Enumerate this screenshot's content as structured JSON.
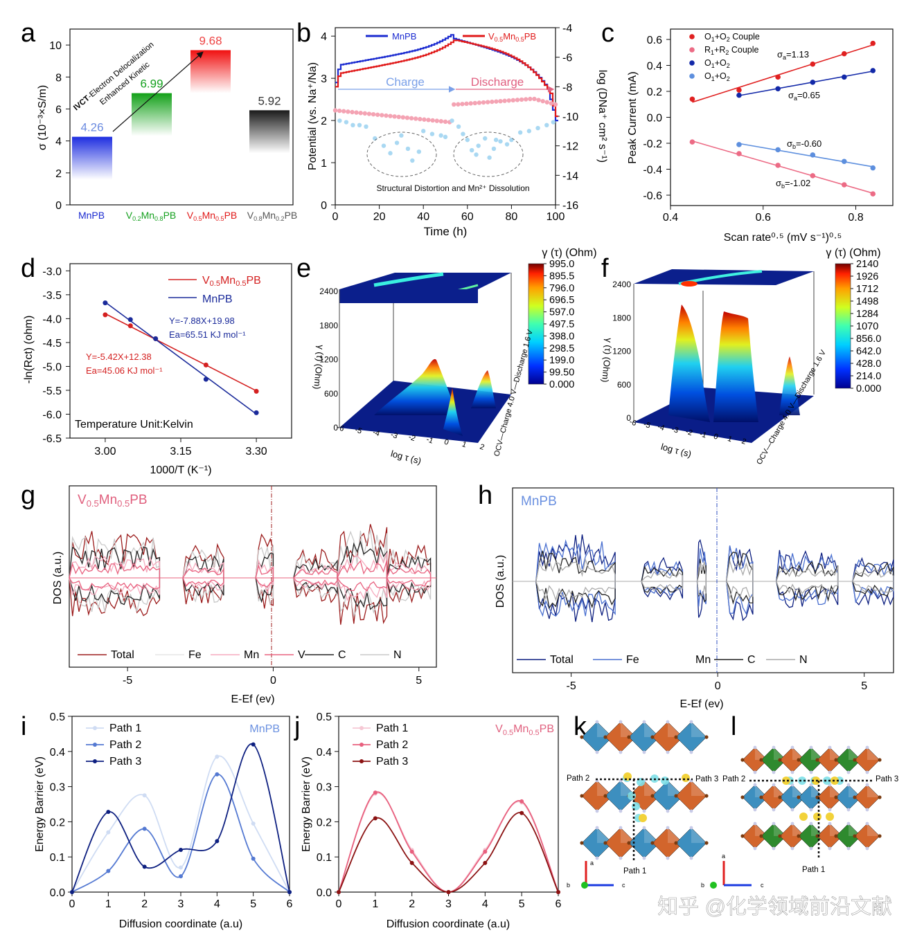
{
  "figure": {
    "panel_letters": [
      "a",
      "b",
      "c",
      "d",
      "e",
      "f",
      "g",
      "h",
      "i",
      "j",
      "k",
      "l"
    ],
    "watermark": "知乎 @化学领域前沿文献"
  },
  "chart_data": [
    {
      "panel": "a",
      "type": "bar",
      "ylabel": "σ (10⁻³×S/m)",
      "ylim": [
        0,
        11
      ],
      "yticks": [
        "0",
        "2",
        "4",
        "6",
        "8",
        "10"
      ],
      "categories": [
        "MnPB",
        "V0.2Mn0.8PB",
        "V0.5Mn0.5PB",
        "V0.8Mn0.2PB"
      ],
      "category_labels": [
        {
          "main": "MnPB"
        },
        {
          "main": "V",
          "s1": "0.2",
          "mid": "Mn",
          "s2": "0.8",
          "end": "PB"
        },
        {
          "main": "V",
          "s1": "0.5",
          "mid": "Mn",
          "s2": "0.5",
          "end": "PB"
        },
        {
          "main": "V",
          "s1": "0.8",
          "mid": "Mn",
          "s2": "0.2",
          "end": "PB"
        }
      ],
      "values": [
        4.26,
        6.99,
        9.68,
        5.92
      ],
      "value_labels": [
        "4.26",
        "6.99",
        "9.68",
        "5.92"
      ],
      "colors": [
        "#1f2fd6",
        "#14a01e",
        "#ee1111",
        "#222222"
      ],
      "annotation_bold": "IVCT",
      "annotation_1": "-Electron Delocalization",
      "annotation_2": "Enhanced Kinetic"
    },
    {
      "panel": "b",
      "type": "line",
      "xlabel": "Time (h)",
      "ylabel": "Potential (vs. Na⁺/Na)",
      "ylabel_right": "log (DNa⁺ cm² s⁻¹)",
      "xticks": [
        "0",
        "20",
        "40",
        "60",
        "80",
        "100"
      ],
      "yticks": [
        "0",
        "1",
        "2",
        "3",
        "4"
      ],
      "yticks_right": [
        "-4",
        "-6",
        "-8",
        "-10",
        "-12",
        "-14",
        "-16"
      ],
      "legend": [
        "MnPB",
        "V0.5Mn0.5PB"
      ],
      "legend_labels": [
        {
          "main": "MnPB"
        },
        {
          "main": "V",
          "s1": "0.5",
          "mid": "Mn",
          "s2": "0.5",
          "end": "PB"
        }
      ],
      "labels": [
        "Charge",
        "Discharge"
      ],
      "annotation": "Structural Distortion and Mn²⁺ Dissolution"
    },
    {
      "panel": "c",
      "type": "scatter",
      "xlabel": "Scan rate⁰·⁵ (mV s⁻¹)⁰·⁵",
      "ylabel": "Peak Current (mA)",
      "xlim": [
        0.4,
        0.88
      ],
      "ylim": [
        -0.68,
        0.68
      ],
      "xticks": [
        "0.4",
        "0.6",
        "0.8"
      ],
      "yticks": [
        "-0.6",
        "-0.4",
        "-0.2",
        "0.0",
        "0.2",
        "0.4",
        "0.6"
      ],
      "x": [
        0.447,
        0.548,
        0.632,
        0.707,
        0.775,
        0.837
      ],
      "series": [
        {
          "name": "O1+O2 Couple",
          "color": "#e02020",
          "values": [
            0.14,
            0.21,
            0.31,
            0.41,
            0.49,
            0.57
          ],
          "label": "σa=1.13"
        },
        {
          "name": "R1+R2 Couple",
          "color": "#ec6b85",
          "values": [
            -0.19,
            -0.28,
            -0.37,
            -0.45,
            -0.52,
            -0.59
          ],
          "label": "σb=-1.02"
        },
        {
          "name": "O1+O2",
          "color": "#1228a8",
          "values": [
            null,
            0.17,
            0.22,
            0.27,
            0.31,
            0.36
          ],
          "label": "σa=0.65"
        },
        {
          "name": "O1+O2",
          "color": "#5d8fde",
          "values": [
            null,
            -0.21,
            -0.25,
            -0.29,
            -0.34,
            -0.39
          ],
          "label": "σb=-0.60"
        }
      ],
      "legend_labels": [
        {
          "main": "O",
          "s1": "1",
          "mid": "+O",
          "s2": "2",
          "end": " Couple"
        },
        {
          "main": "R",
          "s1": "1",
          "mid": "+R",
          "s2": "2",
          "end": " Couple"
        },
        {
          "main": "O",
          "s1": "1",
          "mid": "+O",
          "s2": "2",
          "end": ""
        },
        {
          "main": "O",
          "s1": "1",
          "mid": "+O",
          "s2": "2",
          "end": ""
        }
      ],
      "slope_labels": [
        {
          "main": "σ",
          "s1": "a",
          "end": "=1.13"
        },
        {
          "main": "σ",
          "s1": "b",
          "end": "=-1.02"
        },
        {
          "main": "σ",
          "s1": "a",
          "end": "=0.65"
        },
        {
          "main": "σ",
          "s1": "b",
          "end": "=-0.60"
        }
      ]
    },
    {
      "panel": "d",
      "type": "scatter",
      "xlabel": "1000/T (K⁻¹)",
      "ylabel": "-ln(Rct) (ohm)",
      "xlim": [
        2.93,
        3.37
      ],
      "ylim": [
        -6.5,
        -2.85
      ],
      "xticks": [
        "3.00",
        "3.15",
        "3.30"
      ],
      "yticks": [
        "-3.0",
        "-3.5",
        "-4.0",
        "-4.5",
        "-5.0",
        "-5.5",
        "-6.0",
        "-6.5"
      ],
      "x": [
        3.0,
        3.05,
        3.1,
        3.2,
        3.3
      ],
      "series": [
        {
          "name": "V0.5Mn0.5PB",
          "color": "#d42020",
          "values": [
            -3.92,
            -4.15,
            -4.42,
            -4.97,
            -5.52
          ]
        },
        {
          "name": "MnPB",
          "color": "#1a2a9a",
          "values": [
            -3.67,
            -4.02,
            -4.42,
            -5.27,
            -5.97
          ]
        }
      ],
      "legend_labels": [
        {
          "main": "V",
          "s1": "0.5",
          "mid": "Mn",
          "s2": "0.5",
          "end": "PB"
        },
        {
          "main": "MnPB"
        }
      ],
      "fit_blue_1": "Y=-7.88X+19.98",
      "fit_blue_2": "Ea=65.51 KJ mol⁻¹",
      "fit_red_1": "Y=-5.42X+12.38",
      "fit_red_2": "Ea=45.06 KJ mol⁻¹",
      "note": "Temperature Unit:Kelvin"
    },
    {
      "panel": "e",
      "type": "heatmap",
      "colorbar_title": "γ (τ) (Ohm)",
      "colorbar_ticks": [
        "995.0",
        "895.5",
        "796.0",
        "696.5",
        "597.0",
        "497.5",
        "398.0",
        "298.5",
        "199.0",
        "99.50",
        "0.000"
      ],
      "z_ticks": [
        "2400",
        "1800",
        "1200",
        "600",
        "0"
      ],
      "zlabel": "γ (τ) (Ohm)",
      "xlabel": "log τ (s)",
      "xticks": [
        "-6",
        "-5",
        "-4",
        "-3",
        "-2",
        "-1",
        "0",
        "1",
        "2"
      ],
      "ylabel": "OCV—Charge 4.0 V—Discharge 1.6 V"
    },
    {
      "panel": "f",
      "type": "heatmap",
      "colorbar_title": "γ (τ) (Ohm)",
      "colorbar_ticks": [
        "2140",
        "1926",
        "1712",
        "1498",
        "1284",
        "1070",
        "856.0",
        "642.0",
        "428.0",
        "214.0",
        "0.000"
      ],
      "z_ticks": [
        "2400",
        "1800",
        "1200",
        "600",
        "0"
      ],
      "zlabel": "γ (τ) (Ohm)",
      "xlabel": "log τ (s)",
      "xticks": [
        "-6",
        "-5",
        "-4",
        "-3",
        "-2",
        "-1",
        "0",
        "1",
        "2"
      ],
      "ylabel": "OCV—Charge 4.0 V—Discharge 1.6 V"
    },
    {
      "panel": "g",
      "type": "line",
      "title_label": {
        "main": "V",
        "s1": "0.5",
        "mid": "Mn",
        "s2": "0.5",
        "end": "PB"
      },
      "xlabel": "E-Ef (ev)",
      "ylabel": "DOS (a.u.)",
      "xticks": [
        "-5",
        "0",
        "5"
      ],
      "legend": [
        "Total",
        "Fe",
        "Mn",
        "V",
        "C",
        "N"
      ]
    },
    {
      "panel": "h",
      "type": "line",
      "title": "MnPB",
      "xlabel": "E-Ef (ev)",
      "ylabel": "DOS (a.u.)",
      "xticks": [
        "-5",
        "0",
        "5"
      ],
      "legend": [
        "Total",
        "Fe",
        "Mn",
        "C",
        "N"
      ]
    },
    {
      "panel": "i",
      "type": "line",
      "title": "MnPB",
      "xlabel": "Diffusion coordinate (a.u)",
      "ylabel": "Energy Barrier (eV)",
      "xlim": [
        0,
        6
      ],
      "ylim": [
        0,
        0.5
      ],
      "xticks": [
        "0",
        "1",
        "2",
        "3",
        "4",
        "5",
        "6"
      ],
      "yticks": [
        "0.0",
        "0.1",
        "0.2",
        "0.3",
        "0.4",
        "0.5"
      ],
      "x": [
        0,
        1,
        2,
        3,
        4,
        5,
        6
      ],
      "series": [
        {
          "name": "Path 1",
          "color": "#cfdcf3",
          "values": [
            0,
            0.17,
            0.275,
            0.07,
            0.385,
            0.195,
            0
          ]
        },
        {
          "name": "Path 2",
          "color": "#5479d2",
          "values": [
            0,
            0.06,
            0.18,
            0.045,
            0.335,
            0.095,
            0
          ]
        },
        {
          "name": "Path 3",
          "color": "#0d1f80",
          "values": [
            0,
            0.228,
            0.072,
            0.12,
            0.145,
            0.42,
            0
          ]
        }
      ]
    },
    {
      "panel": "j",
      "type": "line",
      "title_label": {
        "main": "V",
        "s1": "0.5",
        "mid": "Mn",
        "s2": "0.5",
        "end": "PB"
      },
      "xlabel": "Diffusion coordinate (a.u)",
      "ylabel": "Energy Barrier (eV)",
      "xlim": [
        0,
        6
      ],
      "ylim": [
        0,
        0.5
      ],
      "xticks": [
        "0",
        "1",
        "2",
        "3",
        "4",
        "5",
        "6"
      ],
      "yticks": [
        "0.0",
        "0.1",
        "0.2",
        "0.3",
        "0.4",
        "0.5"
      ],
      "x": [
        0,
        1,
        2,
        3,
        4,
        5,
        6
      ],
      "series": [
        {
          "name": "Path 1",
          "color": "#f6c8d4",
          "values": [
            0,
            0.28,
            0.12,
            0,
            0.12,
            0.255,
            0
          ]
        },
        {
          "name": "Path 2",
          "color": "#e8607e",
          "values": [
            0,
            0.283,
            0.115,
            0,
            0.115,
            0.258,
            0
          ]
        },
        {
          "name": "Path 3",
          "color": "#8b1212",
          "values": [
            0,
            0.21,
            0.083,
            0,
            0.083,
            0.225,
            0
          ]
        }
      ]
    }
  ],
  "structures": {
    "k": {
      "labels": [
        "Path 2",
        "Path 3",
        "Path 1"
      ],
      "axes": [
        "a",
        "b",
        "c"
      ]
    },
    "l": {
      "labels": [
        "Path 2",
        "Path 3",
        "Path 1"
      ],
      "axes": [
        "a",
        "b",
        "c"
      ]
    }
  }
}
